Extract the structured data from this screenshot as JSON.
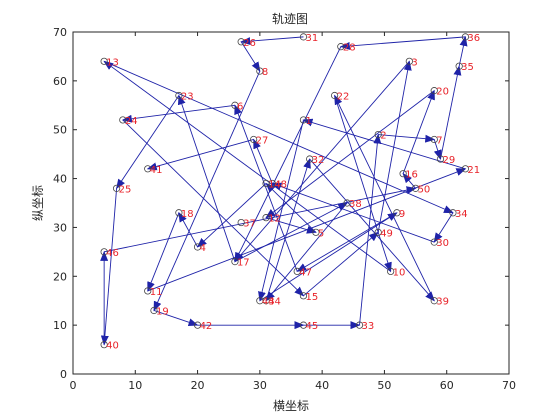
{
  "chart_data": {
    "type": "line",
    "title": "轨迹图",
    "xlabel": "横坐标",
    "ylabel": "纵坐标",
    "xlim": [
      0,
      70
    ],
    "ylim": [
      0,
      70
    ],
    "xticks": [
      0,
      10,
      20,
      30,
      40,
      50,
      60,
      70
    ],
    "yticks": [
      0,
      10,
      20,
      30,
      40,
      50,
      60,
      70
    ],
    "grid": false,
    "line_color": "#1f23a8",
    "marker_color": "#444444",
    "label_color": "#e8232a",
    "points": [
      {
        "id": "1",
        "x": 37,
        "y": 52
      },
      {
        "id": "2",
        "x": 49,
        "y": 49
      },
      {
        "id": "3",
        "x": 54,
        "y": 64
      },
      {
        "id": "4",
        "x": 20,
        "y": 26
      },
      {
        "id": "5",
        "x": 39,
        "y": 29
      },
      {
        "id": "6",
        "x": 26,
        "y": 55
      },
      {
        "id": "7",
        "x": 58,
        "y": 48
      },
      {
        "id": "8",
        "x": 30,
        "y": 62
      },
      {
        "id": "9",
        "x": 52,
        "y": 33
      },
      {
        "id": "10",
        "x": 51,
        "y": 21
      },
      {
        "id": "11",
        "x": 12,
        "y": 17
      },
      {
        "id": "12",
        "x": 31,
        "y": 32
      },
      {
        "id": "13",
        "x": 5,
        "y": 64
      },
      {
        "id": "14",
        "x": 31,
        "y": 39
      },
      {
        "id": "15",
        "x": 37,
        "y": 16
      },
      {
        "id": "16",
        "x": 53,
        "y": 41
      },
      {
        "id": "17",
        "x": 26,
        "y": 23
      },
      {
        "id": "18",
        "x": 17,
        "y": 33
      },
      {
        "id": "19",
        "x": 13,
        "y": 13
      },
      {
        "id": "20",
        "x": 58,
        "y": 58
      },
      {
        "id": "21",
        "x": 63,
        "y": 42
      },
      {
        "id": "22",
        "x": 42,
        "y": 57
      },
      {
        "id": "23",
        "x": 17,
        "y": 57
      },
      {
        "id": "24",
        "x": 8,
        "y": 52
      },
      {
        "id": "25",
        "x": 7,
        "y": 38
      },
      {
        "id": "26",
        "x": 27,
        "y": 68
      },
      {
        "id": "27",
        "x": 29,
        "y": 48
      },
      {
        "id": "28",
        "x": 43,
        "y": 67
      },
      {
        "id": "29",
        "x": 59,
        "y": 44
      },
      {
        "id": "30",
        "x": 58,
        "y": 27
      },
      {
        "id": "31",
        "x": 37,
        "y": 69
      },
      {
        "id": "32",
        "x": 38,
        "y": 44
      },
      {
        "id": "33",
        "x": 46,
        "y": 10
      },
      {
        "id": "34",
        "x": 61,
        "y": 33
      },
      {
        "id": "35",
        "x": 62,
        "y": 63
      },
      {
        "id": "36",
        "x": 63,
        "y": 69
      },
      {
        "id": "37",
        "x": 27,
        "y": 31
      },
      {
        "id": "38",
        "x": 44,
        "y": 35
      },
      {
        "id": "39",
        "x": 58,
        "y": 15
      },
      {
        "id": "40",
        "x": 5,
        "y": 6
      },
      {
        "id": "41",
        "x": 12,
        "y": 42
      },
      {
        "id": "42",
        "x": 20,
        "y": 10
      },
      {
        "id": "43",
        "x": 30,
        "y": 15
      },
      {
        "id": "44",
        "x": 31,
        "y": 15
      },
      {
        "id": "45",
        "x": 37,
        "y": 10
      },
      {
        "id": "46",
        "x": 5,
        "y": 25
      },
      {
        "id": "47",
        "x": 36,
        "y": 21
      },
      {
        "id": "48",
        "x": 32,
        "y": 39
      },
      {
        "id": "49",
        "x": 49,
        "y": 29
      },
      {
        "id": "50",
        "x": 55,
        "y": 38
      }
    ],
    "route": [
      "31",
      "26",
      "8",
      "19",
      "42",
      "45",
      "33",
      "2",
      "7",
      "29",
      "35",
      "36",
      "28",
      "17",
      "23",
      "25",
      "40",
      "46",
      "50",
      "16",
      "20",
      "12",
      "5",
      "14",
      "4",
      "18",
      "11",
      "21",
      "1",
      "43",
      "9",
      "47",
      "6",
      "24",
      "15",
      "49",
      "3",
      "17",
      "38",
      "44",
      "32",
      "39",
      "22",
      "10",
      "13",
      "34",
      "30",
      "48",
      "27",
      "41"
    ]
  }
}
